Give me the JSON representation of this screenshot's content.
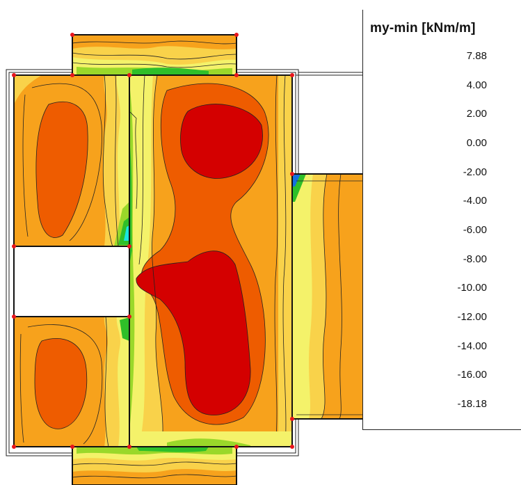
{
  "legend": {
    "title": "my-min [kNm/m]",
    "ticks": [
      "7.88",
      "4.00",
      "2.00",
      "0.00",
      "-2.00",
      "-4.00",
      "-6.00",
      "-8.00",
      "-10.00",
      "-12.00",
      "-14.00",
      "-16.00",
      "-18.18"
    ],
    "colors": [
      "#d40000",
      "#ee5c00",
      "#f7a21c",
      "#f9d24a",
      "#f4f26a",
      "#9ad82a",
      "#2fbf29",
      "#12c98a",
      "#19e6e0",
      "#0fb3e6",
      "#1570e0",
      "#1a2fd0"
    ]
  },
  "palette": {
    "red": "#d40000",
    "dark_orange": "#ee5c00",
    "orange": "#f7a21c",
    "light_orange": "#f9d24a",
    "yellow": "#f4f26a",
    "light_green": "#9ad82a",
    "green": "#2fbf29",
    "cyan": "#19e6e0",
    "blue": "#1570e0",
    "node": "#e8141c",
    "edge": "#111111"
  }
}
